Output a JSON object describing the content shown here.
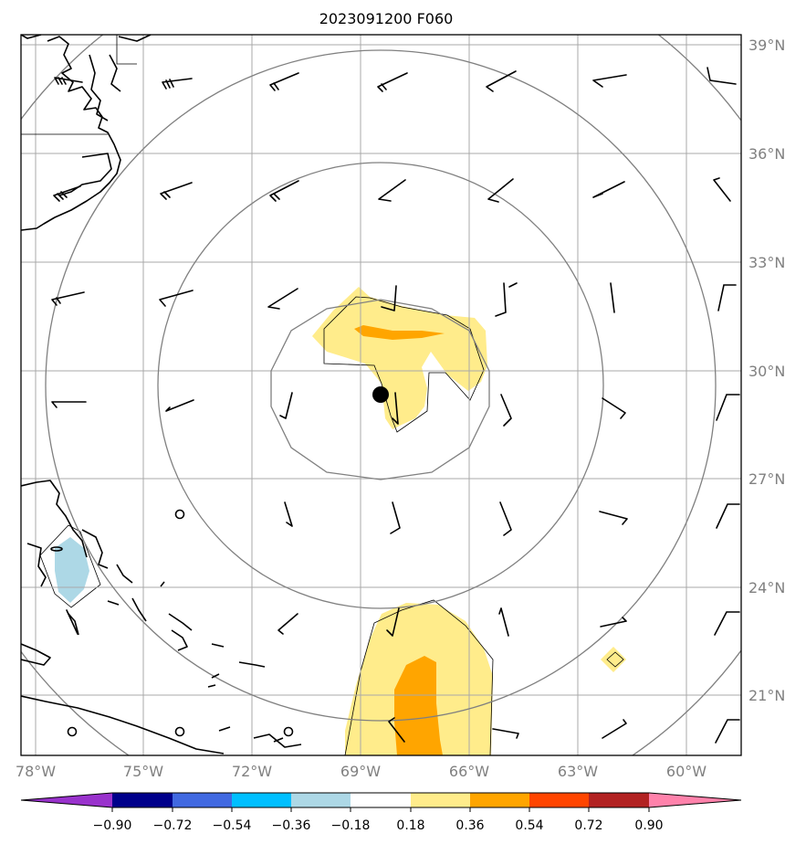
{
  "title": "2023091200 F060",
  "lat_labels": [
    "39°N",
    "36°N",
    "33°N",
    "30°N",
    "27°N",
    "24°N",
    "21°N"
  ],
  "lon_labels": [
    "78°W",
    "75°W",
    "72°W",
    "69°W",
    "66°W",
    "63°W",
    "60°W"
  ],
  "colorbar": {
    "tick_labels": [
      "−0.90",
      "−0.72",
      "−0.54",
      "−0.36",
      "−0.18",
      "0.18",
      "0.36",
      "0.54",
      "0.72",
      "0.90"
    ],
    "colors": [
      "#9932cc",
      "#00008b",
      "#4169e1",
      "#00bfff",
      "#add8e6",
      "#ffffff",
      "#ffec8b",
      "#ffa500",
      "#ff4500",
      "#b22222",
      "#ff82ab"
    ]
  },
  "colors": {
    "grid": "#a9a9a9",
    "ring": "#808080",
    "axis_text": "#808080",
    "coast": "#000000"
  },
  "storm_center": {
    "lat": 29.3,
    "lon": -68.6
  }
}
